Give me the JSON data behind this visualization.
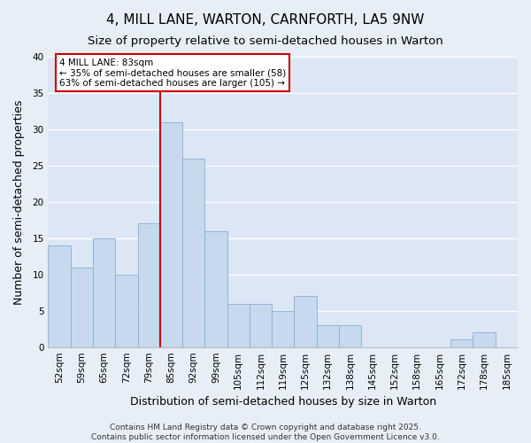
{
  "title": "4, MILL LANE, WARTON, CARNFORTH, LA5 9NW",
  "subtitle": "Size of property relative to semi-detached houses in Warton",
  "xlabel": "Distribution of semi-detached houses by size in Warton",
  "ylabel": "Number of semi-detached properties",
  "categories": [
    "52sqm",
    "59sqm",
    "65sqm",
    "72sqm",
    "79sqm",
    "85sqm",
    "92sqm",
    "99sqm",
    "105sqm",
    "112sqm",
    "119sqm",
    "125sqm",
    "132sqm",
    "138sqm",
    "145sqm",
    "152sqm",
    "158sqm",
    "165sqm",
    "172sqm",
    "178sqm",
    "185sqm"
  ],
  "values": [
    14,
    11,
    15,
    10,
    17,
    31,
    26,
    16,
    6,
    6,
    5,
    7,
    3,
    3,
    0,
    0,
    0,
    0,
    1,
    2,
    0
  ],
  "bar_color": "#c8d8ee",
  "bar_edge_color": "#8ab0d0",
  "background_color": "#e8eef8",
  "plot_bg_color": "#dce6f5",
  "grid_color": "#ffffff",
  "annotation_title": "4 MILL LANE: 83sqm",
  "annotation_line1": "← 35% of semi-detached houses are smaller (58)",
  "annotation_line2": "63% of semi-detached houses are larger (105) →",
  "vline_color": "#cc0000",
  "vline_x": 4.5,
  "ylim": [
    0,
    40
  ],
  "yticks": [
    0,
    5,
    10,
    15,
    20,
    25,
    30,
    35,
    40
  ],
  "footer1": "Contains HM Land Registry data © Crown copyright and database right 2025.",
  "footer2": "Contains public sector information licensed under the Open Government Licence v3.0.",
  "title_fontsize": 11,
  "subtitle_fontsize": 9.5,
  "axis_label_fontsize": 9,
  "tick_fontsize": 7.5,
  "annotation_fontsize": 7.5,
  "footer_fontsize": 6.5
}
